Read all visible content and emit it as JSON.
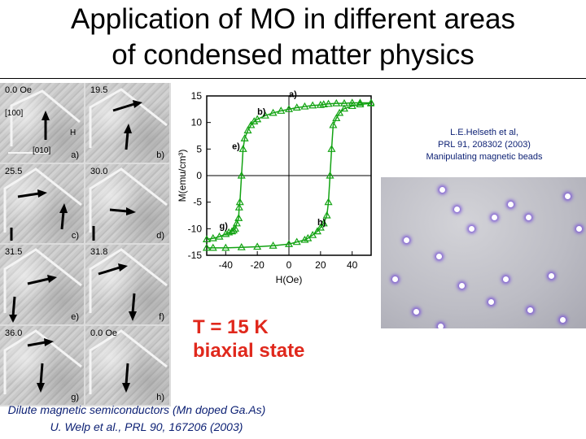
{
  "slide": {
    "title_line1": "Application of MO in different areas",
    "title_line2": "of condensed matter physics"
  },
  "micrographs": {
    "tiles": [
      {
        "field": "0.0 Oe",
        "letter": "a)",
        "dir1": "[100]",
        "dir2": "[010]",
        "hlabel": "H"
      },
      {
        "field": "19.5",
        "letter": "b)"
      },
      {
        "field": "25.5",
        "letter": "c)"
      },
      {
        "field": "30.0",
        "letter": "d)"
      },
      {
        "field": "31.5",
        "letter": "e)"
      },
      {
        "field": "31.8",
        "letter": "f)"
      },
      {
        "field": "36.0",
        "letter": "g)"
      },
      {
        "field": "0.0 Oe",
        "letter": "h)"
      }
    ]
  },
  "chart_data": {
    "type": "line",
    "xlabel": "H(Oe)",
    "ylabel": "M(emu/cm³)",
    "xlim": [
      -52,
      52
    ],
    "ylim": [
      -15,
      15
    ],
    "xticks": [
      -40,
      -20,
      0,
      20,
      40
    ],
    "yticks": [
      15,
      10,
      5,
      0,
      -5,
      -10,
      -15
    ],
    "color": "#13a313",
    "marker": "open-triangle",
    "series": [
      {
        "branch": "descending",
        "x": [
          52,
          45,
          40,
          35,
          30,
          25,
          22,
          20,
          15,
          10,
          5,
          0,
          -5,
          -10,
          -15,
          -20,
          -22,
          -24,
          -26,
          -28,
          -29,
          -30,
          -31,
          -31.5,
          -31.8,
          -33,
          -34,
          -35,
          -36,
          -38,
          -40,
          -44,
          -48,
          -52
        ],
        "y": [
          13.7,
          13.7,
          13.7,
          13.6,
          13.6,
          13.5,
          13.4,
          13.3,
          13.2,
          13.0,
          12.8,
          12.5,
          12.2,
          11.8,
          11.3,
          10.6,
          10.2,
          9.5,
          8.5,
          7.0,
          5.0,
          0,
          -5,
          -6,
          -8,
          -9,
          -10,
          -10.3,
          -10.5,
          -10.7,
          -11.0,
          -11.5,
          -11.8,
          -12.0
        ]
      },
      {
        "branch": "ascending",
        "x": [
          -52,
          -48,
          -40,
          -30,
          -20,
          -10,
          0,
          5,
          10,
          12,
          15,
          18,
          20,
          22,
          24,
          25,
          26,
          27,
          28,
          30,
          32,
          35,
          40,
          45,
          52
        ],
        "y": [
          -13.6,
          -13.6,
          -13.6,
          -13.5,
          -13.4,
          -13.2,
          -12.9,
          -12.5,
          -12.1,
          -11.8,
          -11.2,
          -10.5,
          -9.8,
          -9.0,
          -7.5,
          -5,
          0,
          5,
          9.5,
          10.8,
          11.8,
          12.6,
          13.1,
          13.4,
          13.6
        ]
      }
    ],
    "annotations": [
      "a)",
      "b)",
      "e)",
      "g)",
      "h)"
    ]
  },
  "condition": {
    "temperature": "T = 15 K",
    "state": "biaxial state"
  },
  "left_caption": {
    "line1": "Dilute magnetic semiconductors (Mn doped Ga.As)",
    "line2": "U. Welp et al.,  PRL 90, 167206 (2003)"
  },
  "right_caption": {
    "line1": "L.E.Helseth et al,",
    "line2": "PRL 91, 208302 (2003)",
    "line3": "Manipulating magnetic beads"
  }
}
